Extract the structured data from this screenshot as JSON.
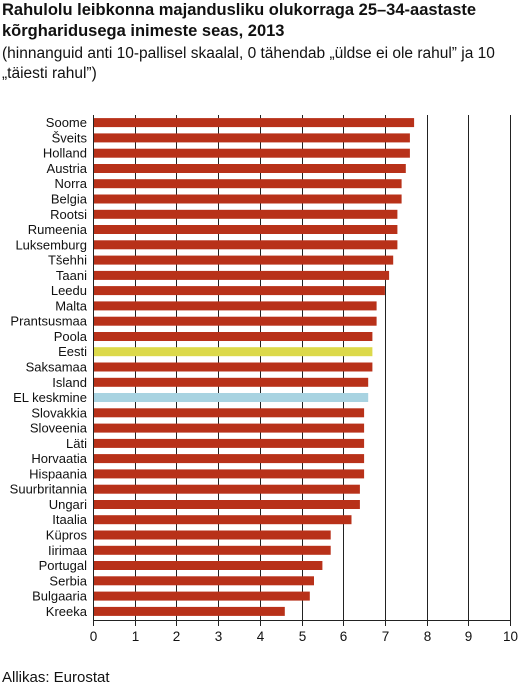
{
  "header": {
    "title": "Rahulolu leibkonna majandusliku olukorraga 25–34-aastaste kõrgharidusega inimeste seas, 2013",
    "subtitle": "(hinnanguid anti 10-pallisel skaalal, 0 tähendab „üldse ei ole rahul” ja 10 „täiesti rahul”)"
  },
  "footer": {
    "source": "Allikas: Eurostat"
  },
  "colors": {
    "bar": "#b83119",
    "highlight_estonia": "#dcd94a",
    "highlight_eu": "#a8d3e1",
    "grid": "#222222"
  },
  "chart_data": {
    "type": "bar",
    "orientation": "horizontal",
    "categories": [
      "Soome",
      "Šveits",
      "Holland",
      "Austria",
      "Norra",
      "Belgia",
      "Rootsi",
      "Rumeenia",
      "Luksemburg",
      "Tšehhi",
      "Taani",
      "Leedu",
      "Malta",
      "Prantsusmaa",
      "Poola",
      "Eesti",
      "Saksamaa",
      "Island",
      "EL keskmine",
      "Slovakkia",
      "Sloveenia",
      "Läti",
      "Horvaatia",
      "Hispaania",
      "Suurbritannia",
      "Ungari",
      "Itaalia",
      "Küpros",
      "Iirimaa",
      "Portugal",
      "Serbia",
      "Bulgaaria",
      "Kreeka"
    ],
    "values": [
      7.7,
      7.6,
      7.6,
      7.5,
      7.4,
      7.4,
      7.3,
      7.3,
      7.3,
      7.2,
      7.1,
      7.0,
      6.8,
      6.8,
      6.7,
      6.7,
      6.7,
      6.6,
      6.6,
      6.5,
      6.5,
      6.5,
      6.5,
      6.5,
      6.4,
      6.4,
      6.2,
      5.7,
      5.7,
      5.5,
      5.3,
      5.2,
      4.6
    ],
    "highlights": {
      "Eesti": "highlight_estonia",
      "EL keskmine": "highlight_eu"
    },
    "xlim": [
      0,
      10
    ],
    "xticks": [
      "0",
      "1",
      "2",
      "3",
      "4",
      "5",
      "6",
      "7",
      "8",
      "9",
      "10"
    ],
    "grid": "vertical"
  }
}
